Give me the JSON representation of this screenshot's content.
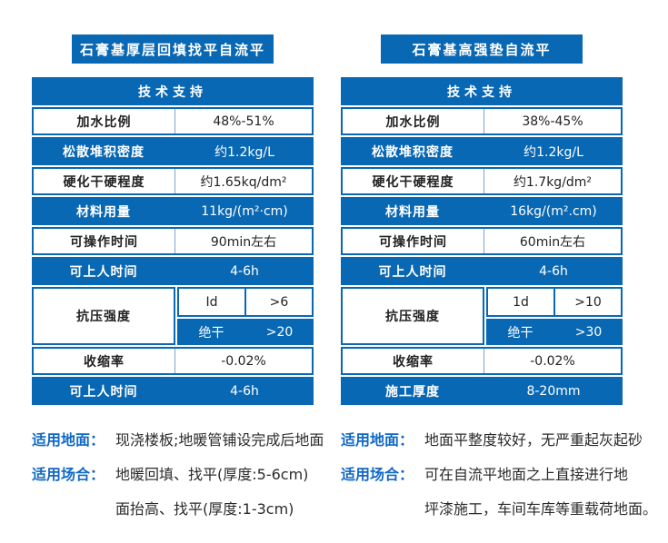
{
  "colors": {
    "primary_blue": "#0968b4",
    "note_label_blue": "#1168c4",
    "divider_light_blue": "#7ea2d8",
    "text_dark": "#222222",
    "background": "#ffffff"
  },
  "products": [
    {
      "title": "石膏基厚层回填找平自流平",
      "table": {
        "header": "技术支持",
        "rows": [
          {
            "label": "加水比例",
            "value": "48%-51%",
            "style": "white"
          },
          {
            "label": "松散堆积密度",
            "value": "约1.2kg/L",
            "style": "blue"
          },
          {
            "label": "硬化干硬程度",
            "value": "约1.65kq/dm²",
            "style": "white"
          },
          {
            "label": "材料用量",
            "value": "11kg/(m²·cm)",
            "style": "blue"
          },
          {
            "label": "可操作时间",
            "value": "90min左右",
            "style": "white"
          },
          {
            "label": "可上人时间",
            "value": "4-6h",
            "style": "blue"
          },
          {
            "label": "抗压强度",
            "style": "split",
            "sub_rows": [
              {
                "label": "Id",
                "value": ">6",
                "style": "white"
              },
              {
                "label": "绝干",
                "value": ">20",
                "style": "blue"
              }
            ]
          },
          {
            "label": "收缩率",
            "value": "-0.02%",
            "style": "white"
          },
          {
            "label": "可上人时间",
            "value": "4-6h",
            "style": "blue"
          }
        ]
      },
      "notes": [
        {
          "label": "适用地面：",
          "lines": [
            "现浇楼板;地暖管铺设完成后地面"
          ]
        },
        {
          "label": "适用场合：",
          "lines": [
            "地暖回填、找平(厚度:5-6cm)",
            "面抬高、找平(厚度:1-3cm)"
          ]
        }
      ]
    },
    {
      "title": "石膏基高强垫自流平",
      "table": {
        "header": "技术支持",
        "rows": [
          {
            "label": "加水比例",
            "value": "38%-45%",
            "style": "white"
          },
          {
            "label": "松散堆积密度",
            "value": "约1.2kg/L",
            "style": "blue"
          },
          {
            "label": "硬化干硬程度",
            "value": "约1.7kg/dm²",
            "style": "white"
          },
          {
            "label": "材料用量",
            "value": "16kg/(m².cm)",
            "style": "blue"
          },
          {
            "label": "可操作时间",
            "value": "60min左右",
            "style": "white"
          },
          {
            "label": "可上人时间",
            "value": "4-6h",
            "style": "blue"
          },
          {
            "label": "抗压强度",
            "style": "split",
            "sub_rows": [
              {
                "label": "1d",
                "value": ">10",
                "style": "white"
              },
              {
                "label": "绝干",
                "value": ">30",
                "style": "blue"
              }
            ]
          },
          {
            "label": "收缩率",
            "value": "-0.02%",
            "style": "white"
          },
          {
            "label": "施工厚度",
            "value": "8-20mm",
            "style": "blue"
          }
        ]
      },
      "notes": [
        {
          "label": "适用地面：",
          "lines": [
            "地面平整度较好，无严重起灰起砂"
          ]
        },
        {
          "label": "适用场合：",
          "lines": [
            "可在自流平地面之上直接进行地",
            "坪漆施工，车间车库等重载荷地面。"
          ]
        }
      ]
    }
  ]
}
